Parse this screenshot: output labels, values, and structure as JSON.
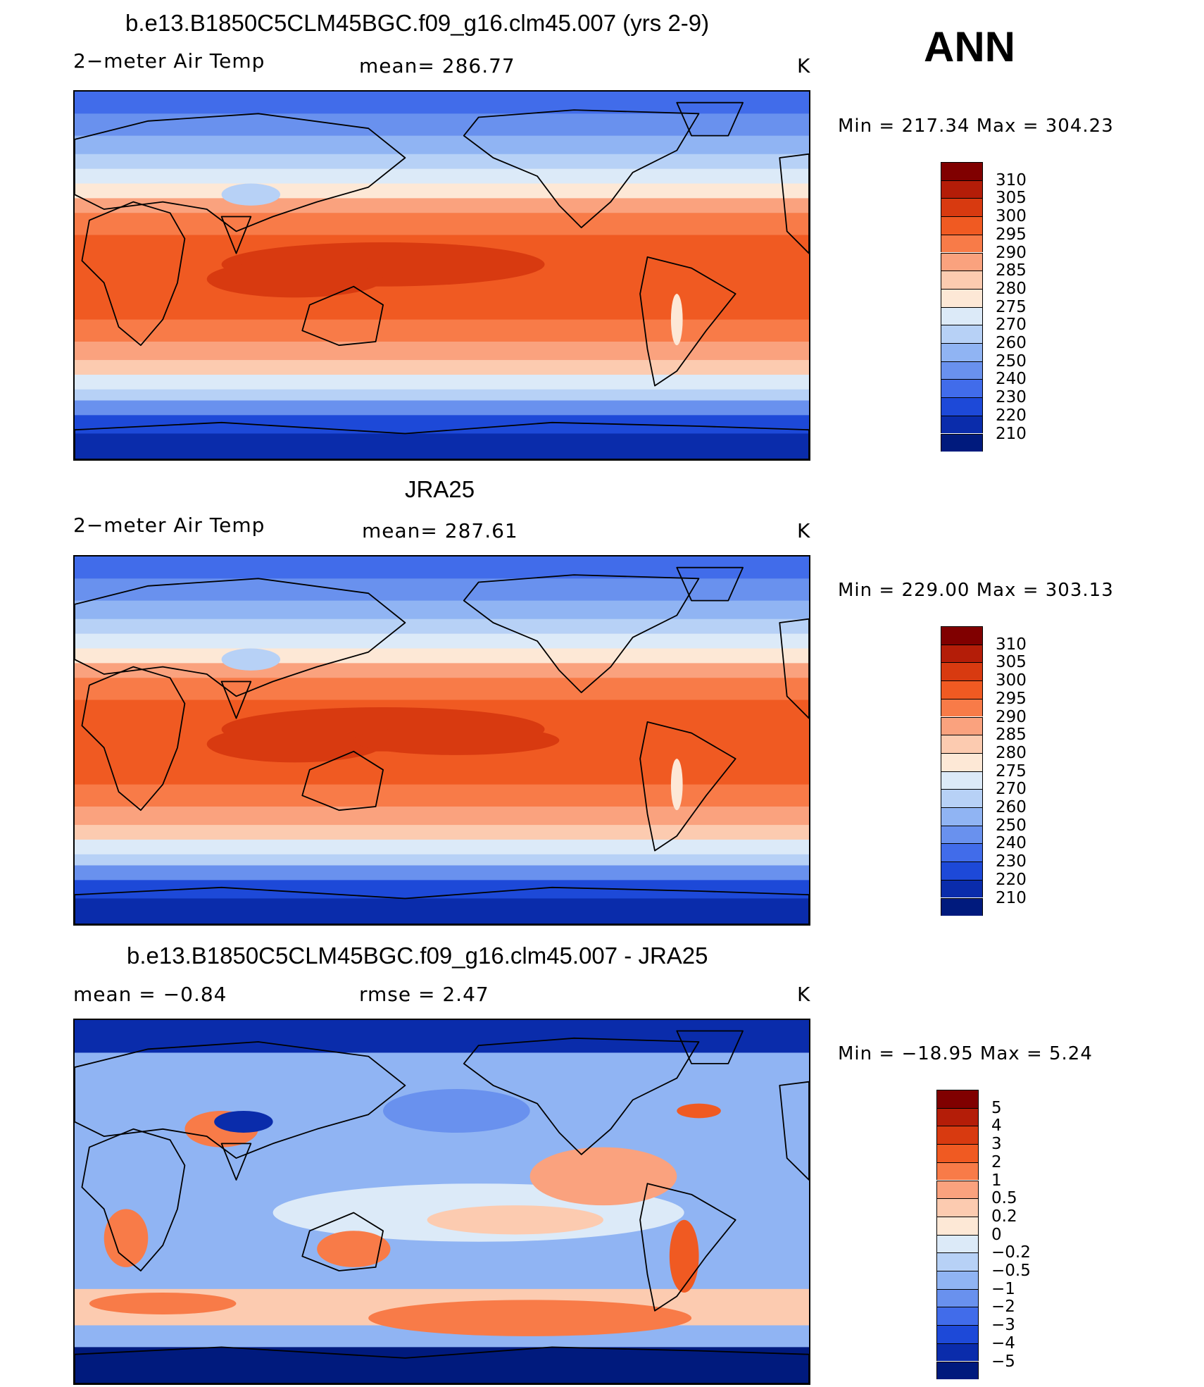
{
  "season": "ANN",
  "units": "K",
  "panels": [
    {
      "title": "b.e13.B1850C5CLM45BGC.f09_g16.clm45.007 (yrs 2-9)",
      "left_label": "2−meter Air Temp",
      "center_label": "mean=  286.77",
      "right_label": "K",
      "minmax": "Min  =  217.34  Max  =  304.23",
      "colorbar_labels": [
        "310",
        "305",
        "300",
        "295",
        "290",
        "285",
        "280",
        "275",
        "270",
        "260",
        "250",
        "240",
        "230",
        "220",
        "210"
      ],
      "colors": [
        "#800000",
        "#b41d08",
        "#d83a10",
        "#f05a22",
        "#f87b48",
        "#faa27e",
        "#fccbb0",
        "#fde8d6",
        "#dceaf8",
        "#b7d1f6",
        "#90b4f3",
        "#6991ee",
        "#416cea",
        "#1d49d8",
        "#0a2cab",
        "#001a7d"
      ],
      "map_field": "model 2m air temperature"
    },
    {
      "title": "JRA25",
      "left_label": "2−meter Air Temp",
      "center_label": "mean=  287.61",
      "right_label": "K",
      "minmax": "Min  =  229.00  Max  =  303.13",
      "colorbar_labels": [
        "310",
        "305",
        "300",
        "295",
        "290",
        "285",
        "280",
        "275",
        "270",
        "260",
        "250",
        "240",
        "230",
        "220",
        "210"
      ],
      "colors": [
        "#800000",
        "#b41d08",
        "#d83a10",
        "#f05a22",
        "#f87b48",
        "#faa27e",
        "#fccbb0",
        "#fde8d6",
        "#dceaf8",
        "#b7d1f6",
        "#90b4f3",
        "#6991ee",
        "#416cea",
        "#1d49d8",
        "#0a2cab",
        "#001a7d"
      ],
      "map_field": "reanalysis 2m air temperature"
    },
    {
      "title": "b.e13.B1850C5CLM45BGC.f09_g16.clm45.007 - JRA25",
      "left_label": "mean  =    −0.84",
      "center_label": "rmse  =     2.47",
      "right_label": "K",
      "minmax": "Min  =  −18.95  Max  =      5.24",
      "colorbar_labels": [
        "5",
        "4",
        "3",
        "2",
        "1",
        "0.5",
        "0.2",
        "0",
        "−0.2",
        "−0.5",
        "−1",
        "−2",
        "−3",
        "−4",
        "−5"
      ],
      "colors": [
        "#800000",
        "#b41d08",
        "#d83a10",
        "#f05a22",
        "#f87b48",
        "#faa27e",
        "#fccbb0",
        "#fde8d6",
        "#dceaf8",
        "#b7d1f6",
        "#90b4f3",
        "#6991ee",
        "#416cea",
        "#1d49d8",
        "#0a2cab",
        "#001a7d"
      ],
      "map_field": "difference model minus JRA25"
    }
  ]
}
